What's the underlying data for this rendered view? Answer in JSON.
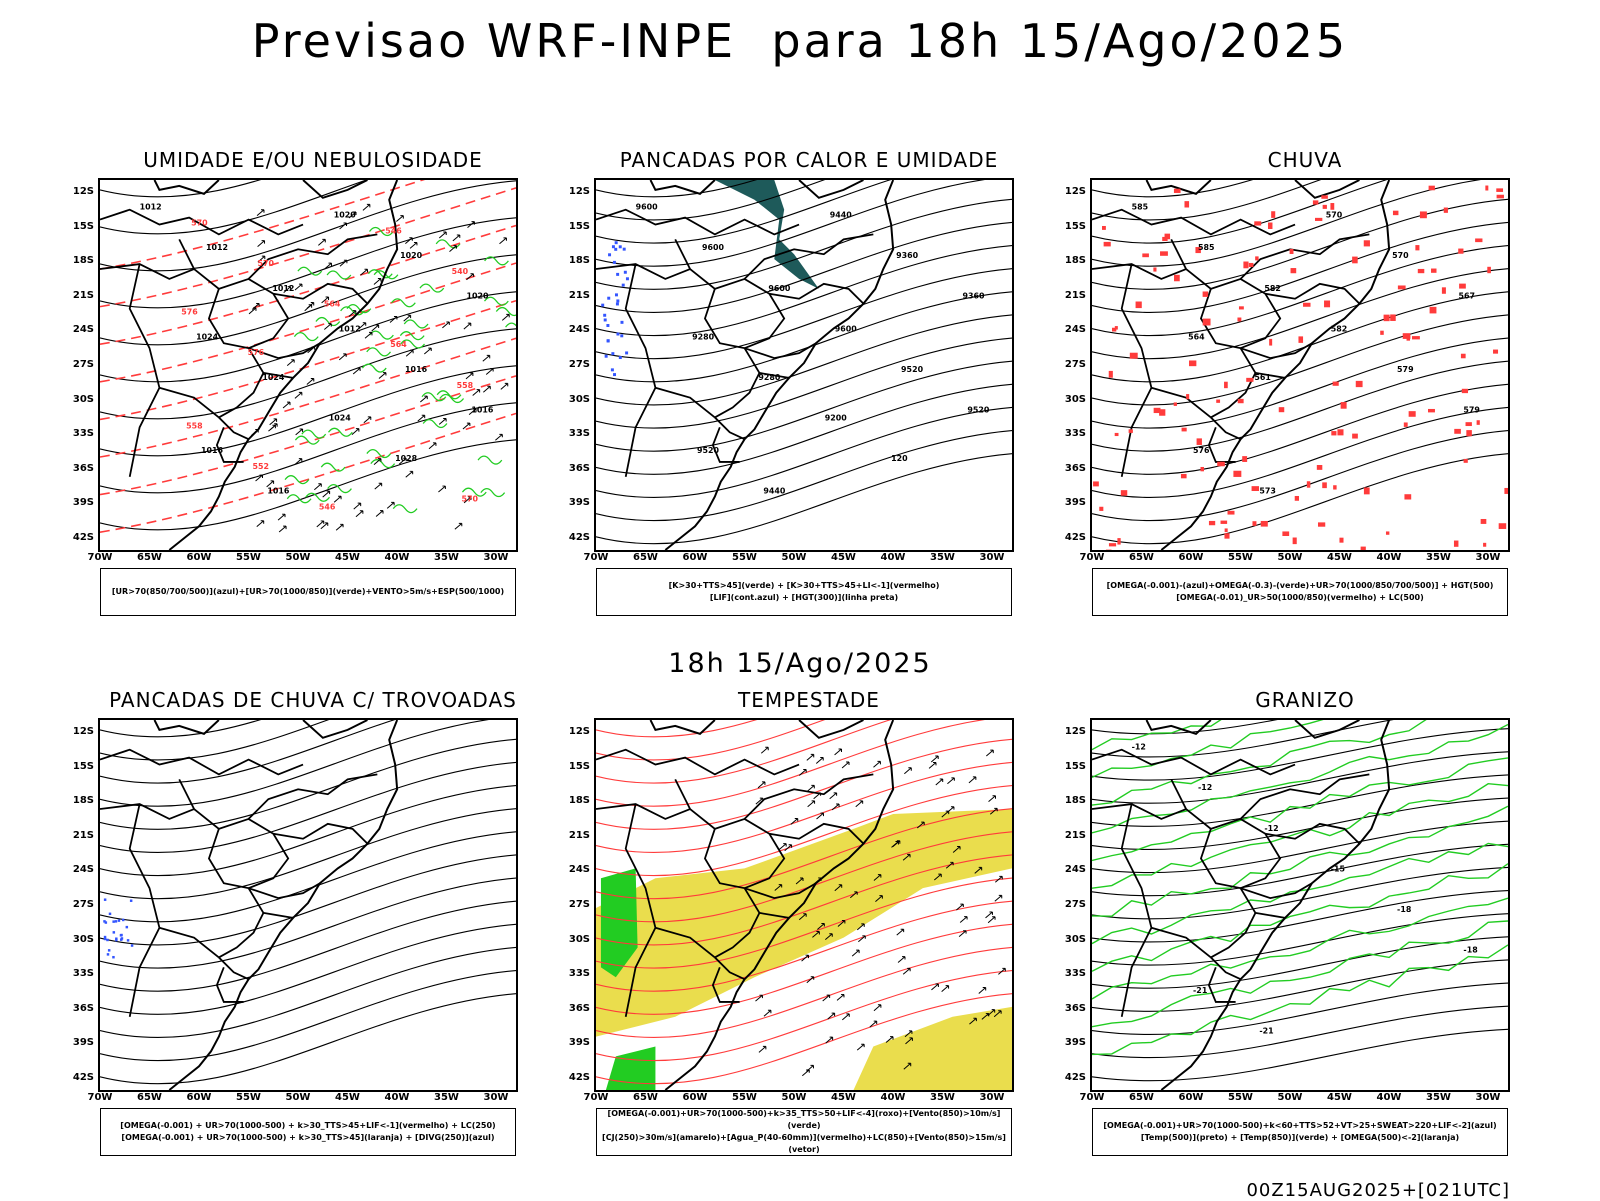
{
  "header": {
    "title": "Previsao WRF-INPE  para 18h 15/Ago/2025",
    "mid_title": "18h 15/Ago/2025",
    "footer": "00Z15AUG2025+[021UTC]"
  },
  "axes": {
    "lat_labels": [
      "12S",
      "15S",
      "18S",
      "21S",
      "24S",
      "27S",
      "30S",
      "33S",
      "36S",
      "39S",
      "42S"
    ],
    "lon_labels": [
      "70W",
      "65W",
      "60W",
      "55W",
      "50W",
      "45W",
      "40W",
      "35W",
      "30W"
    ]
  },
  "colors": {
    "black": "#000000",
    "red": "#ff3b3b",
    "green": "#22cc22",
    "blue": "#3355ff",
    "light_blue": "#aab4ee",
    "yellow": "#e8d93a",
    "dark_teal": "#1e5a5a",
    "orange": "#ff8c33"
  },
  "panels": [
    {
      "title": "UMIDADE E/OU NEBULOSIDADE",
      "legend_lines": [
        "[UR>70(850/700/500)](azul)+[UR>70(1000/850)](verde)+VENTO>5m/s+ESP(500/1000)"
      ],
      "contour_labels": [
        "1012",
        "1012",
        "1012",
        "1012",
        "1016",
        "1016",
        "1016",
        "1016",
        "1020",
        "1020",
        "1020",
        "1024",
        "1024",
        "1024",
        "1028",
        "570",
        "570",
        "570",
        "564",
        "564",
        "558",
        "558",
        "552",
        "546",
        "546",
        "540",
        "576",
        "576"
      ]
    },
    {
      "title": "PANCADAS POR CALOR E UMIDADE",
      "legend_lines": [
        "[K>30+TTS>45](verde) + [K>30+TTS>45+LI<-1](vermelho)",
        "[LIF](cont.azul) + [HGT(300)](linha preta)"
      ],
      "contour_labels": [
        "9600",
        "9600",
        "9600",
        "9600",
        "9520",
        "9520",
        "9520",
        "9440",
        "9440",
        "9360",
        "9360",
        "9280",
        "9280",
        "9200",
        "120"
      ]
    },
    {
      "title": "CHUVA",
      "legend_lines": [
        "[OMEGA(-0.001)-(azul)+OMEGA(-0.3)-(verde)+UR>70(1000/850/700/500)] + HGT(500)",
        "[OMEGA(-0.01)_UR>50(1000/850)(vermelho) + LC(500)"
      ],
      "contour_labels": [
        "585",
        "585",
        "582",
        "582",
        "579",
        "579",
        "576",
        "573",
        "570",
        "570",
        "567",
        "564",
        "561"
      ]
    },
    {
      "title": "PANCADAS DE CHUVA C/ TROVOADAS",
      "legend_lines": [
        "[OMEGA(-0.001) + UR>70(1000-500) + k>30_TTS>45+LIF<-1](vermelho) + LC(250)",
        "[OMEGA(-0.001) + UR>70(1000-500) + k>30_TTS>45](laranja) + [DIVG(250)](azul)"
      ],
      "contour_labels": []
    },
    {
      "title": "TEMPESTADE",
      "legend_lines": [
        "[OMEGA(-0.001)+UR>70(1000-500)+k>35_TTS>50+LIF<-4](roxo)+[Vento(850)>10m/s](verde)",
        "[CJ(250)>30m/s](amarelo)+[Agua_P(40-60mm)](vermelho)+LC(850)+[Vento(850)>15m/s](vetor)"
      ],
      "contour_labels": []
    },
    {
      "title": "GRANIZO",
      "legend_lines": [
        "[OMEGA(-0.001)+UR>70(1000-500)+k<60+TTS>52+VT>25+SWEAT>220+LIF<-2](azul)",
        "[Temp(500)](preto) + [Temp(850)](verde) + [OMEGA(500)<-2](laranja)"
      ],
      "contour_labels": [
        "-12",
        "-12",
        "-12",
        "-15",
        "-18",
        "-18",
        "-21",
        "-21"
      ]
    }
  ]
}
